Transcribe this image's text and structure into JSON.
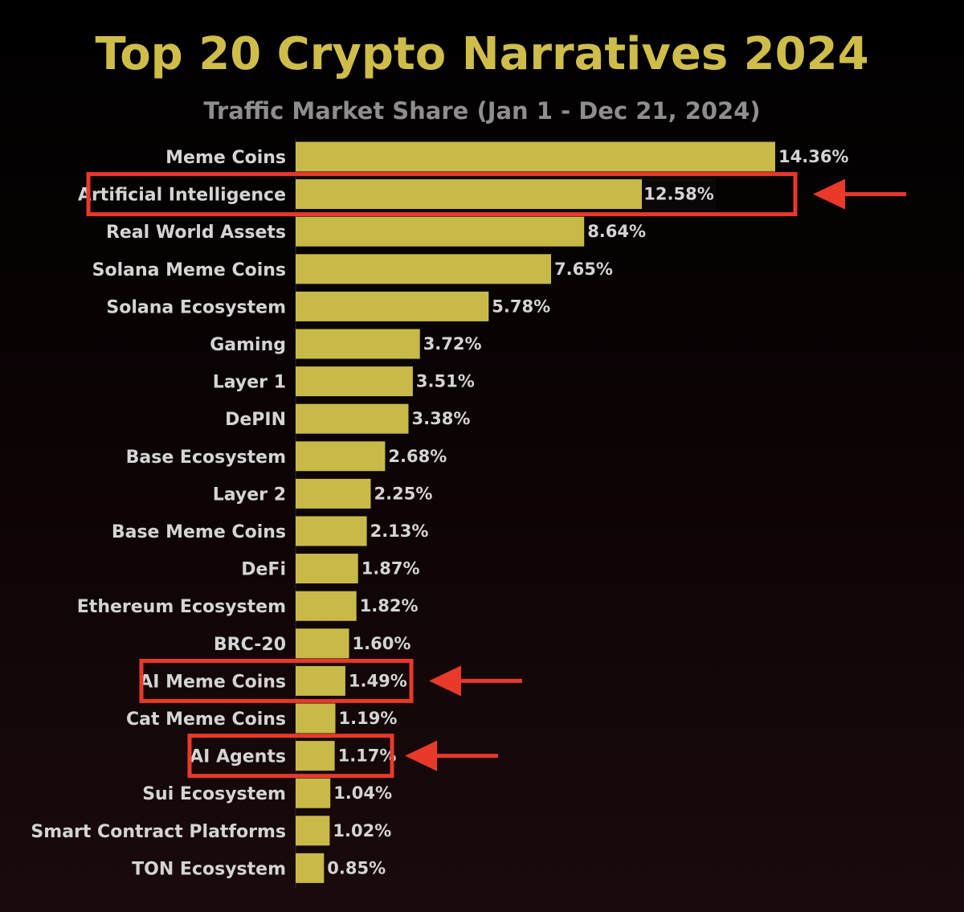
{
  "header": {
    "title": "Top 20 Crypto Narratives 2024",
    "subtitle": "Traffic Market Share (Jan 1 - Dec 21, 2024)"
  },
  "colors": {
    "bar": "#c8ba48",
    "title": "#cfbd4a",
    "subtitle": "#8e8e8e",
    "label": "#d4d4d4",
    "highlight": "#e8392b"
  },
  "chart_data": {
    "type": "bar",
    "orientation": "horizontal",
    "title": "Top 20 Crypto Narratives 2024",
    "subtitle": "Traffic Market Share (Jan 1 - Dec 21, 2024)",
    "xlabel": "",
    "ylabel": "",
    "grid": false,
    "legend": "none",
    "categories": [
      "Meme Coins",
      "Artificial Intelligence",
      "Real World Assets",
      "Solana Meme Coins",
      "Solana Ecosystem",
      "Gaming",
      "Layer 1",
      "DePIN",
      "Base Ecosystem",
      "Layer 2",
      "Base Meme Coins",
      "DeFi",
      "Ethereum Ecosystem",
      "BRC-20",
      "AI Meme Coins",
      "Cat Meme Coins",
      "AI Agents",
      "Sui Ecosystem",
      "Smart Contract Platforms",
      "TON Ecosystem"
    ],
    "values": [
      14.36,
      12.58,
      8.64,
      7.65,
      5.78,
      3.72,
      3.51,
      3.38,
      2.68,
      2.25,
      2.13,
      1.87,
      1.82,
      1.6,
      1.49,
      1.19,
      1.17,
      1.04,
      1.02,
      0.85
    ],
    "value_labels": [
      "14.36%",
      "12.58%",
      "8.64%",
      "7.65%",
      "5.78%",
      "3.72%",
      "3.51%",
      "3.38%",
      "2.68%",
      "2.25%",
      "2.13%",
      "1.87%",
      "1.82%",
      "1.60%",
      "1.49%",
      "1.19%",
      "1.17%",
      "1.04%",
      "1.02%",
      "0.85%"
    ],
    "highlighted": [
      "Artificial Intelligence",
      "AI Meme Coins",
      "AI Agents"
    ]
  }
}
